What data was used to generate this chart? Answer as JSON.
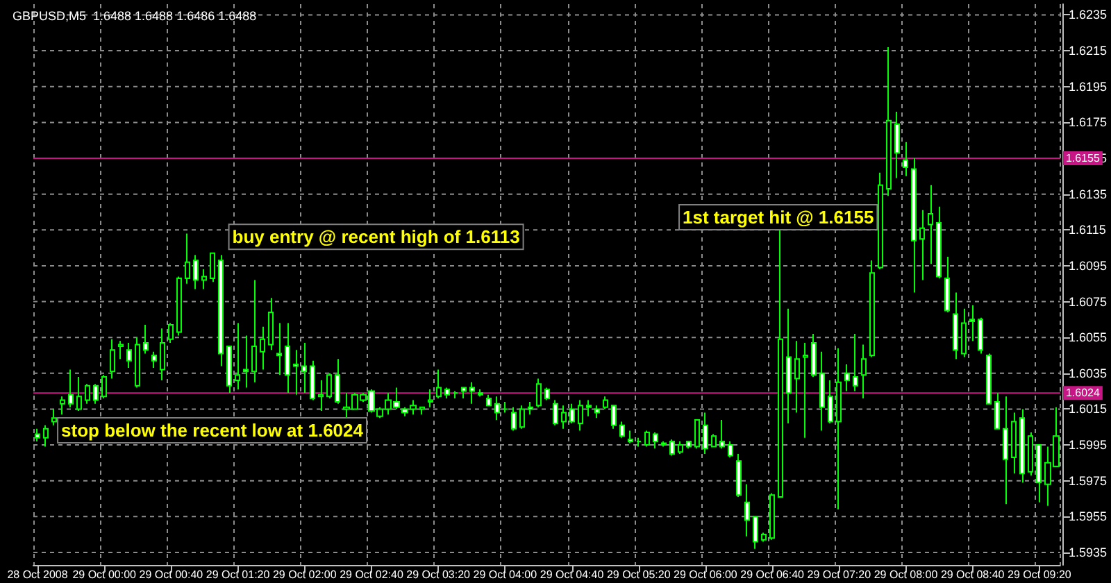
{
  "chart_data": {
    "type": "candlestick",
    "title": "GBPUSD,M5  1.6488 1.6488 1.6486 1.6488",
    "color": "#00ff00",
    "grid": true,
    "categories": [
      "28 Oct 2008",
      null,
      null,
      null,
      null,
      null,
      null,
      null,
      "29 Oct 00:00",
      null,
      null,
      null,
      null,
      null,
      null,
      null,
      "29 Oct 00:40",
      null,
      null,
      null,
      null,
      null,
      null,
      null,
      "29 Oct 01:20",
      null,
      null,
      null,
      null,
      null,
      null,
      null,
      "29 Oct 02:00",
      null,
      null,
      null,
      null,
      null,
      null,
      null,
      "29 Oct 02:40",
      null,
      null,
      null,
      null,
      null,
      null,
      null,
      "29 Oct 03:20",
      null,
      null,
      null,
      null,
      null,
      null,
      null,
      "29 Oct 04:00",
      null,
      null,
      null,
      null,
      null,
      null,
      null,
      "29 Oct 04:40",
      null,
      null,
      null,
      null,
      null,
      null,
      null,
      "29 Oct 05:20",
      null,
      null,
      null,
      null,
      null,
      null,
      null,
      "29 Oct 06:00",
      null,
      null,
      null,
      null,
      null,
      null,
      null,
      "29 Oct 06:40",
      null,
      null,
      null,
      null,
      null,
      null,
      null,
      "29 Oct 07:20",
      null,
      null,
      null,
      null,
      null,
      null,
      null,
      "29 Oct 08:00",
      null,
      null,
      null,
      null,
      null,
      null,
      null,
      "29 Oct 08:40",
      null,
      null,
      null,
      null,
      null,
      null,
      null,
      "29 Oct 09:20",
      null,
      null
    ],
    "ohlc": [
      [
        1.6001,
        1.6004,
        1.5997,
        1.5999
      ],
      [
        1.5999,
        1.6006,
        1.5994,
        1.6004
      ],
      [
        1.6008,
        1.6015,
        1.6006,
        1.601
      ],
      [
        1.6018,
        1.6022,
        1.6012,
        1.602
      ],
      [
        1.6023,
        1.6037,
        1.6016,
        1.6018
      ],
      [
        1.6015,
        1.6033,
        1.6014,
        1.6022
      ],
      [
        1.602,
        1.6029,
        1.6018,
        1.6028
      ],
      [
        1.6028,
        1.6029,
        1.6018,
        1.602
      ],
      [
        1.6022,
        1.6034,
        1.6021,
        1.6033
      ],
      [
        1.6036,
        1.6054,
        1.6032,
        1.6048
      ],
      [
        1.605,
        1.6053,
        1.6043,
        1.6051
      ],
      [
        1.6048,
        1.6052,
        1.6038,
        1.6042
      ],
      [
        1.6028,
        1.6055,
        1.6027,
        1.6051
      ],
      [
        1.6052,
        1.6062,
        1.6046,
        1.6048
      ],
      [
        1.6045,
        1.6047,
        1.6038,
        1.6042
      ],
      [
        1.6037,
        1.606,
        1.6031,
        1.6052
      ],
      [
        1.6054,
        1.6063,
        1.6052,
        1.6062
      ],
      [
        1.6058,
        1.6089,
        1.6056,
        1.6088
      ],
      [
        1.6088,
        1.6113,
        1.6085,
        1.6097
      ],
      [
        1.6098,
        1.6101,
        1.6082,
        1.6087
      ],
      [
        1.6087,
        1.6093,
        1.6082,
        1.6089
      ],
      [
        1.6088,
        1.6102,
        1.6086,
        1.6102
      ],
      [
        1.6098,
        1.6101,
        1.6039,
        1.6046
      ],
      [
        1.605,
        1.605,
        1.6024,
        1.6028
      ],
      [
        1.6031,
        1.6063,
        1.6026,
        1.6034
      ],
      [
        1.6037,
        1.6056,
        1.6027,
        1.6036
      ],
      [
        1.6036,
        1.6087,
        1.603,
        1.605
      ],
      [
        1.6047,
        1.6061,
        1.6037,
        1.6054
      ],
      [
        1.6051,
        1.6077,
        1.6048,
        1.6069
      ],
      [
        1.6046,
        1.6063,
        1.6034,
        1.6045
      ],
      [
        1.605,
        1.6063,
        1.6024,
        1.6034
      ],
      [
        1.604,
        1.6048,
        1.6023,
        1.6039
      ],
      [
        1.6039,
        1.6052,
        1.6024,
        1.6036
      ],
      [
        1.6039,
        1.6042,
        1.602,
        1.6021
      ],
      [
        1.6022,
        1.6031,
        1.6014,
        1.6023
      ],
      [
        1.6022,
        1.6035,
        1.6021,
        1.6034
      ],
      [
        1.6034,
        1.6043,
        1.6018,
        1.6019
      ],
      [
        1.6015,
        1.6024,
        1.6009,
        1.6016
      ],
      [
        1.6015,
        1.6024,
        1.6015,
        1.6023
      ],
      [
        1.602,
        1.6024,
        1.6019,
        1.6023
      ],
      [
        1.6025,
        1.6026,
        1.6013,
        1.6014
      ],
      [
        1.6011,
        1.6016,
        1.601,
        1.6015
      ],
      [
        1.6015,
        1.6024,
        1.6012,
        1.602
      ],
      [
        1.6019,
        1.6027,
        1.6015,
        1.6016
      ],
      [
        1.6015,
        1.6016,
        1.6011,
        1.6013
      ],
      [
        1.6015,
        1.602,
        1.6012,
        1.6017
      ],
      [
        1.6015,
        1.6016,
        1.6012,
        1.6016
      ],
      [
        1.6019,
        1.6026,
        1.6016,
        1.602
      ],
      [
        1.6022,
        1.6037,
        1.6021,
        1.6027
      ],
      [
        1.6026,
        1.6027,
        1.6021,
        1.6023
      ],
      [
        1.6024,
        1.6025,
        1.6021,
        1.6024
      ],
      [
        1.6027,
        1.6027,
        1.6021,
        1.6025
      ],
      [
        1.6027,
        1.603,
        1.6018,
        1.6025
      ],
      [
        1.6024,
        1.6026,
        1.6022,
        1.6023
      ],
      [
        1.6021,
        1.6023,
        1.6017,
        1.6017
      ],
      [
        1.6018,
        1.6022,
        1.6009,
        1.6013
      ],
      [
        1.6015,
        1.6019,
        1.6013,
        1.6015
      ],
      [
        1.6013,
        1.6016,
        1.6003,
        1.6004
      ],
      [
        1.6005,
        1.6017,
        1.6004,
        1.6015
      ],
      [
        1.6016,
        1.6019,
        1.6012,
        1.6015
      ],
      [
        1.6017,
        1.6032,
        1.6016,
        1.6029
      ],
      [
        1.6026,
        1.6027,
        1.602,
        1.6021
      ],
      [
        1.6018,
        1.602,
        1.6006,
        1.6007
      ],
      [
        1.6008,
        1.6017,
        1.6004,
        1.6013
      ],
      [
        1.6015,
        1.6018,
        1.6007,
        1.6008
      ],
      [
        1.6007,
        1.602,
        1.6003,
        1.6017
      ],
      [
        1.6017,
        1.602,
        1.6011,
        1.6016
      ],
      [
        1.6015,
        1.6017,
        1.601,
        1.6013
      ],
      [
        1.6016,
        1.6022,
        1.6015,
        1.602
      ],
      [
        1.6017,
        1.6017,
        1.6004,
        1.6006
      ],
      [
        1.6006,
        1.6008,
        1.5999,
        1.6
      ],
      [
        1.5998,
        1.6003,
        1.5996,
        1.5997
      ],
      [
        1.5997,
        1.5999,
        1.5994,
        1.5997
      ],
      [
        1.5995,
        1.6003,
        1.5994,
        1.6002
      ],
      [
        1.6001,
        1.6002,
        1.5993,
        1.5997
      ],
      [
        1.5996,
        1.5997,
        1.5994,
        1.5995
      ],
      [
        1.5997,
        1.5998,
        1.5989,
        1.599
      ],
      [
        1.5991,
        1.5997,
        1.599,
        1.5995
      ],
      [
        1.5997,
        1.5997,
        1.5993,
        1.5994
      ],
      [
        1.5994,
        1.6009,
        1.5993,
        1.6009
      ],
      [
        1.6006,
        1.6013,
        1.599,
        1.5993
      ],
      [
        1.5994,
        1.6001,
        1.5994,
        1.6
      ],
      [
        1.5997,
        1.6009,
        1.5993,
        1.5994
      ],
      [
        1.5995,
        1.5997,
        1.5988,
        1.5989
      ],
      [
        1.5986,
        1.599,
        1.5966,
        1.5967
      ],
      [
        1.5963,
        1.5973,
        1.5944,
        1.5953
      ],
      [
        1.5955,
        1.5955,
        1.5937,
        1.5941
      ],
      [
        1.5942,
        1.5946,
        1.5941,
        1.5945
      ],
      [
        1.5943,
        1.5968,
        1.5942,
        1.5967
      ],
      [
        1.5966,
        1.6115,
        1.5966,
        1.6054
      ],
      [
        1.6044,
        1.6071,
        1.6007,
        1.6024
      ],
      [
        1.6032,
        1.6053,
        1.6013,
        1.6043
      ],
      [
        1.6044,
        1.6052,
        1.5999,
        1.6045
      ],
      [
        1.6052,
        1.6057,
        1.6033,
        1.6034
      ],
      [
        1.6035,
        1.6047,
        1.6003,
        1.6016
      ],
      [
        1.6022,
        1.6031,
        1.6007,
        1.6008
      ],
      [
        1.6008,
        1.6049,
        1.5959,
        1.603
      ],
      [
        1.6035,
        1.604,
        1.6025,
        1.6031
      ],
      [
        1.6033,
        1.6057,
        1.6025,
        1.6028
      ],
      [
        1.6034,
        1.6051,
        1.6021,
        1.6043
      ],
      [
        1.6045,
        1.6098,
        1.6044,
        1.6091
      ],
      [
        1.6094,
        1.6147,
        1.6093,
        1.614
      ],
      [
        1.6138,
        1.6217,
        1.6134,
        1.6176
      ],
      [
        1.6174,
        1.6181,
        1.6144,
        1.6158
      ],
      [
        1.6154,
        1.6164,
        1.6145,
        1.615
      ],
      [
        1.6149,
        1.6155,
        1.608,
        1.6109
      ],
      [
        1.611,
        1.6126,
        1.6087,
        1.6116
      ],
      [
        1.6118,
        1.614,
        1.6096,
        1.6124
      ],
      [
        1.6119,
        1.6128,
        1.6088,
        1.6089
      ],
      [
        1.6088,
        1.61,
        1.6069,
        1.607
      ],
      [
        1.6068,
        1.608,
        1.6043,
        1.6048
      ],
      [
        1.6046,
        1.6071,
        1.6044,
        1.6063
      ],
      [
        1.6065,
        1.6073,
        1.6053,
        1.6064
      ],
      [
        1.6065,
        1.6066,
        1.6046,
        1.6048
      ],
      [
        1.6045,
        1.6046,
        1.6018,
        1.6018
      ],
      [
        1.6019,
        1.6024,
        1.6004,
        1.6004
      ],
      [
        1.6004,
        1.6022,
        1.5962,
        1.5987
      ],
      [
        1.5988,
        1.6013,
        1.5979,
        1.6008
      ],
      [
        1.601,
        1.6015,
        1.5974,
        1.5979
      ],
      [
        1.598,
        1.6002,
        1.5978,
        1.6
      ],
      [
        1.5995,
        1.5995,
        1.5963,
        1.5974
      ],
      [
        1.5973,
        1.5994,
        1.5961,
        1.5985
      ],
      [
        1.5983,
        1.6016,
        1.5983,
        1.6
      ]
    ],
    "ylim": [
      1.5928,
      1.6241
    ],
    "yticks": [
      1.5935,
      1.5955,
      1.5975,
      1.5995,
      1.6015,
      1.6035,
      1.6055,
      1.6075,
      1.6095,
      1.6115,
      1.6135,
      1.6155,
      1.6175,
      1.6195,
      1.6215,
      1.6235
    ],
    "ref_lines": [
      {
        "axis": "y",
        "value": 1.6155,
        "label": "1.6155",
        "color": "#c71585"
      },
      {
        "axis": "y",
        "value": 1.6024,
        "label": "1.6024",
        "color": "#c71585"
      }
    ],
    "annotations": [
      "buy entry @ recent high of 1.6113",
      "1st target hit @ 1.6155",
      "stop below the recent low at 1.6024"
    ]
  }
}
